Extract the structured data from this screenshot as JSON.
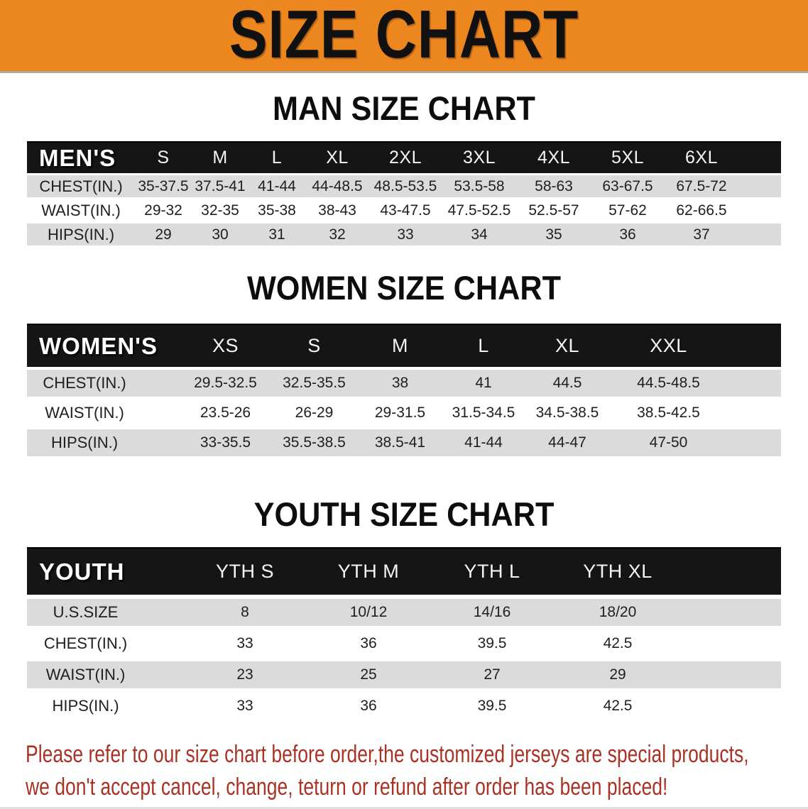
{
  "banner": {
    "title": "SIZE CHART"
  },
  "sections": [
    {
      "heading": "MAN SIZE CHART",
      "header_label": "MEN'S",
      "columns": [
        "S",
        "M",
        "L",
        "XL",
        "2XL",
        "3XL",
        "4XL",
        "5XL",
        "6XL"
      ],
      "rows": [
        {
          "label": "CHEST(IN.)",
          "values": [
            "35-37.5",
            "37.5-41",
            "41-44",
            "44-48.5",
            "48.5-53.5",
            "53.5-58",
            "58-63",
            "63-67.5",
            "67.5-72"
          ]
        },
        {
          "label": "WAIST(IN.)",
          "values": [
            "29-32",
            "32-35",
            "35-38",
            "38-43",
            "43-47.5",
            "47.5-52.5",
            "52.5-57",
            "57-62",
            "62-66.5"
          ]
        },
        {
          "label": "HIPS(IN.)",
          "values": [
            "29",
            "30",
            "31",
            "32",
            "33",
            "34",
            "35",
            "36",
            "37"
          ]
        }
      ]
    },
    {
      "heading": "WOMEN SIZE CHART",
      "header_label": "WOMEN'S",
      "columns": [
        "XS",
        "S",
        "M",
        "L",
        "XL",
        "XXL"
      ],
      "rows": [
        {
          "label": "CHEST(IN.)",
          "values": [
            "29.5-32.5",
            "32.5-35.5",
            "38",
            "41",
            "44.5",
            "44.5-48.5"
          ]
        },
        {
          "label": "WAIST(IN.)",
          "values": [
            "23.5-26",
            "26-29",
            "29-31.5",
            "31.5-34.5",
            "34.5-38.5",
            "38.5-42.5"
          ]
        },
        {
          "label": "HIPS(IN.)",
          "values": [
            "33-35.5",
            "35.5-38.5",
            "38.5-41",
            "41-44",
            "44-47",
            "47-50"
          ]
        }
      ]
    },
    {
      "heading": "YOUTH SIZE CHART",
      "header_label": "YOUTH",
      "columns": [
        "YTH S",
        "YTH M",
        "YTH L",
        "YTH XL"
      ],
      "rows": [
        {
          "label": "U.S.SIZE",
          "values": [
            "8",
            "10/12",
            "14/16",
            "18/20"
          ]
        },
        {
          "label": "CHEST(IN.)",
          "values": [
            "33",
            "36",
            "39.5",
            "42.5"
          ]
        },
        {
          "label": "WAIST(IN.)",
          "values": [
            "23",
            "25",
            "27",
            "29"
          ]
        },
        {
          "label": "HIPS(IN.)",
          "values": [
            "33",
            "36",
            "39.5",
            "42.5"
          ]
        }
      ]
    }
  ],
  "footer": {
    "line1": "Please refer to our size chart before order,the customized jerseys are special products,",
    "line2": "we don't accept cancel, change, teturn or refund after order has been placed!"
  },
  "colors": {
    "banner_bg": "#EC861E",
    "header_bar_bg": "#151515",
    "row_shaded_bg": "#DBDBDB",
    "row_plain_bg": "#FFFFFF",
    "notice_text": "#A93226"
  }
}
